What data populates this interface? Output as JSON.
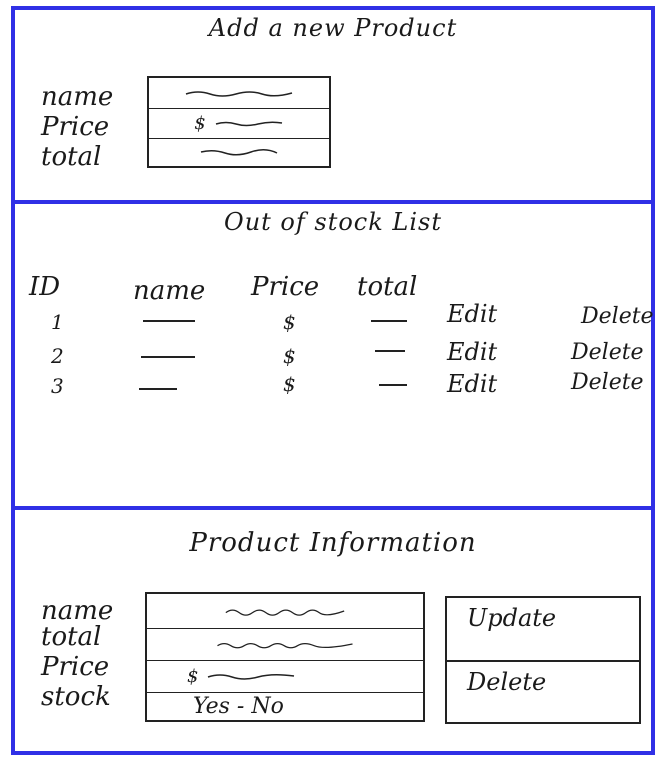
{
  "add_product": {
    "title": "Add a new Product",
    "labels": {
      "name": "name",
      "price": "Price",
      "total": "total"
    },
    "price_prefix": "$"
  },
  "out_of_stock": {
    "title": "Out of stock List",
    "headers": {
      "id": "ID",
      "name": "name",
      "price": "Price",
      "total": "total"
    },
    "rows": [
      {
        "id": "1",
        "price": "$",
        "edit": "Edit",
        "delete": "Delete"
      },
      {
        "id": "2",
        "price": "$",
        "edit": "Edit",
        "delete": "Delete"
      },
      {
        "id": "3",
        "price": "$",
        "edit": "Edit",
        "delete": "Delete"
      }
    ]
  },
  "product_info": {
    "title": "Product Information",
    "labels": {
      "name": "name",
      "total": "total",
      "price": "Price",
      "stock": "stock"
    },
    "price_prefix": "$",
    "stock_value": "Yes - No",
    "update_label": "Update",
    "delete_label": "Delete"
  },
  "colors": {
    "border": "#3030e6",
    "ink": "#1a1a1a"
  }
}
